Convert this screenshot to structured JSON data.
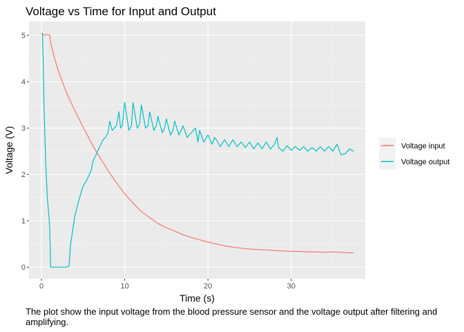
{
  "chart_data": {
    "type": "line",
    "title": "Voltage vs Time for Input and Output",
    "xlabel": "Time (s)",
    "ylabel": "Voltage (V)",
    "xlim": [
      -1.5,
      38.9
    ],
    "ylim": [
      -0.25,
      5.3
    ],
    "xticks": [
      0,
      10,
      20,
      30
    ],
    "yticks": [
      0,
      1,
      2,
      3,
      4,
      5
    ],
    "grid": true,
    "legend_position": "right",
    "series": [
      {
        "name": "Voltage input",
        "color": "#F8766D",
        "x": [
          0,
          0.3,
          0.7,
          1.0,
          1.1,
          1.5,
          2.0,
          2.5,
          3.0,
          3.5,
          4.0,
          4.5,
          5.0,
          5.5,
          6.0,
          6.5,
          7.0,
          7.5,
          8.0,
          8.5,
          9.0,
          9.5,
          10.0,
          11.0,
          12.0,
          13.0,
          14.0,
          15.0,
          16.0,
          17.0,
          18.0,
          19.0,
          20.0,
          21.0,
          22.0,
          23.0,
          24.0,
          25.0,
          26.0,
          27.0,
          28.0,
          29.0,
          30.0,
          31.0,
          32.0,
          33.0,
          34.0,
          35.0,
          36.0,
          37.0,
          37.5
        ],
        "y": [
          5.05,
          5.0,
          5.02,
          5.0,
          4.85,
          4.55,
          4.25,
          4.0,
          3.77,
          3.57,
          3.38,
          3.2,
          3.02,
          2.85,
          2.68,
          2.52,
          2.37,
          2.23,
          2.08,
          1.95,
          1.82,
          1.7,
          1.58,
          1.38,
          1.2,
          1.07,
          0.94,
          0.85,
          0.78,
          0.7,
          0.64,
          0.59,
          0.54,
          0.5,
          0.46,
          0.43,
          0.41,
          0.39,
          0.38,
          0.37,
          0.36,
          0.35,
          0.34,
          0.34,
          0.33,
          0.33,
          0.32,
          0.33,
          0.32,
          0.31,
          0.31
        ]
      },
      {
        "name": "Voltage output",
        "color": "#00BFC4",
        "x": [
          0.1,
          0.2,
          0.3,
          0.5,
          0.7,
          0.9,
          1.0,
          1.1,
          1.3,
          2.0,
          3.0,
          3.3,
          3.5,
          4.0,
          4.5,
          5.0,
          5.5,
          6.0,
          6.2,
          6.5,
          7.0,
          7.4,
          7.7,
          8.0,
          8.2,
          8.5,
          9.0,
          9.3,
          9.5,
          9.7,
          10.0,
          10.5,
          10.8,
          11.0,
          11.5,
          11.8,
          12.0,
          12.5,
          12.8,
          13.0,
          13.5,
          13.8,
          14.0,
          14.5,
          14.8,
          15.0,
          15.5,
          15.8,
          16.0,
          16.5,
          16.8,
          17.0,
          17.5,
          18.0,
          18.5,
          18.8,
          19.0,
          19.5,
          20.0,
          20.5,
          20.8,
          21.0,
          21.5,
          22.0,
          22.5,
          23.0,
          23.5,
          24.0,
          24.5,
          25.0,
          25.5,
          26.0,
          26.5,
          27.0,
          27.5,
          28.0,
          28.3,
          28.5,
          29.0,
          29.5,
          30.0,
          30.5,
          31.0,
          31.5,
          32.0,
          32.5,
          33.0,
          33.5,
          34.0,
          34.5,
          35.0,
          35.5,
          36.0,
          36.5,
          37.0,
          37.5
        ],
        "y": [
          5.05,
          4.5,
          3.5,
          2.3,
          1.5,
          1.1,
          0.8,
          0.0,
          0.0,
          0.0,
          0.0,
          0.02,
          0.5,
          1.1,
          1.45,
          1.75,
          1.9,
          2.1,
          2.3,
          2.4,
          2.6,
          2.75,
          2.8,
          2.9,
          3.15,
          2.95,
          3.05,
          3.35,
          3.0,
          3.05,
          3.55,
          2.95,
          3.05,
          3.55,
          3.0,
          3.1,
          3.5,
          3.0,
          3.05,
          3.35,
          2.95,
          3.05,
          3.25,
          2.9,
          3.0,
          3.2,
          2.85,
          2.95,
          3.15,
          2.85,
          2.95,
          3.05,
          2.8,
          2.9,
          3.0,
          2.7,
          2.95,
          2.7,
          2.85,
          2.65,
          2.8,
          2.75,
          2.6,
          2.75,
          2.6,
          2.75,
          2.6,
          2.7,
          2.58,
          2.7,
          2.55,
          2.68,
          2.55,
          2.7,
          2.55,
          2.65,
          2.8,
          2.58,
          2.5,
          2.62,
          2.52,
          2.6,
          2.52,
          2.6,
          2.5,
          2.58,
          2.5,
          2.6,
          2.5,
          2.6,
          2.5,
          2.65,
          2.42,
          2.45,
          2.55,
          2.5
        ]
      }
    ]
  },
  "caption": "The plot show the input voltage from the blood pressure sensor and the voltage output after filtering and amplifying."
}
